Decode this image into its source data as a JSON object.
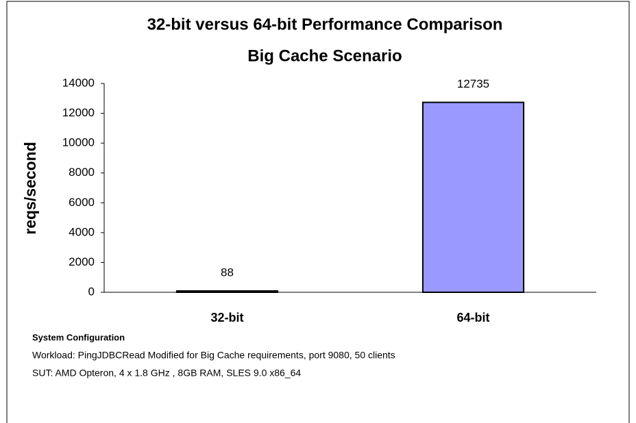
{
  "chart_data": {
    "type": "bar",
    "title": "32-bit versus 64-bit Performance Comparison",
    "subtitle": "Big Cache Scenario",
    "y_label": "reqs/second",
    "categories": [
      "32-bit",
      "64-bit"
    ],
    "values": [
      88,
      12735
    ],
    "color": "#9999ff",
    "ylim": [
      0,
      14000
    ],
    "yticks": [
      0,
      2000,
      4000,
      6000,
      8000,
      10000,
      12000,
      14000
    ],
    "notes": [
      "System Configuration",
      "Workload:  PingJDBCRead Modified for Big Cache requirements, port 9080, 50 clients",
      "SUT:  AMD Opteron, 4 x 1.8 GHz , 8GB RAM, SLES 9.0 x86_64"
    ]
  }
}
